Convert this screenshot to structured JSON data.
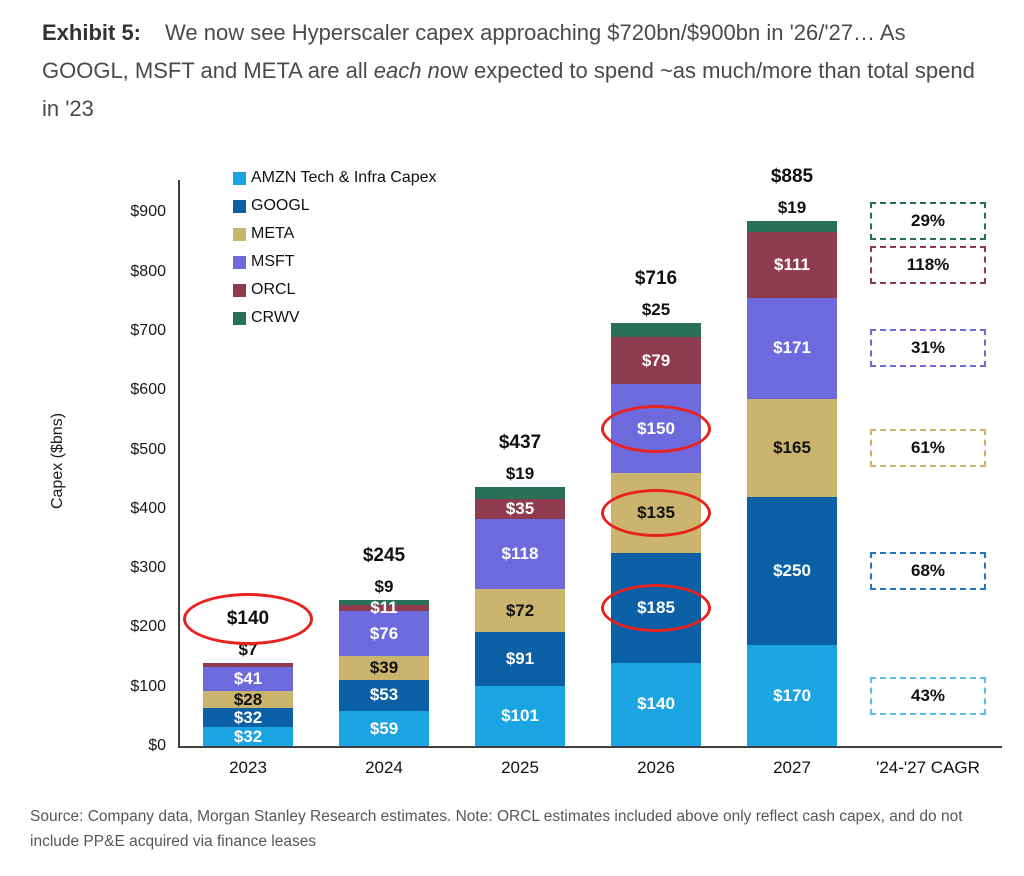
{
  "page": {
    "title": {
      "prefix": "Exhibit 5:",
      "part1": "We now see Hyperscaler capex approaching $720bn/$900bn in '26/'27… As GOOGL, MSFT and META are all ",
      "italic": "each n",
      "part2": "ow expected to spend ~as much/more than total spend in '23"
    },
    "source": "Source: Company data, Morgan Stanley Research estimates. Note: ORCL estimates included above only reflect cash capex, and do not include PP&E acquired via finance leases"
  },
  "chart_data": {
    "type": "stacked-bar",
    "title": "",
    "xlabel": "",
    "ylabel": "Capex ($bns)",
    "ylim": [
      0,
      940
    ],
    "grid": false,
    "legend_position": "top-left",
    "yticks": {
      "values": [
        0,
        100,
        200,
        300,
        400,
        500,
        600,
        700,
        800,
        900
      ],
      "labels": [
        "$0",
        "$100",
        "$200",
        "$300",
        "$400",
        "$500",
        "$600",
        "$700",
        "$800",
        "$900"
      ]
    },
    "categories": [
      "2023",
      "2024",
      "2025",
      "2026",
      "2027"
    ],
    "x_axis_extra_label": "'24-'27 CAGR",
    "series": [
      {
        "key": "AMZN",
        "name": "AMZN Tech & Infra Capex",
        "color": "#1BA4E2",
        "label_color": "#ffffff",
        "values": [
          32,
          59,
          101,
          140,
          170
        ]
      },
      {
        "key": "GOOGL",
        "name": "GOOGL",
        "color": "#0B5FA5",
        "label_color": "#ffffff",
        "values": [
          32,
          53,
          91,
          185,
          250
        ]
      },
      {
        "key": "META",
        "name": "META",
        "color": "#CBB46E",
        "label_color": "#111111",
        "values": [
          28,
          39,
          72,
          135,
          165
        ]
      },
      {
        "key": "MSFT",
        "name": "MSFT",
        "color": "#6C6ADC",
        "label_color": "#ffffff",
        "values": [
          41,
          76,
          118,
          150,
          171
        ]
      },
      {
        "key": "ORCL",
        "name": "ORCL",
        "color": "#8E3A4F",
        "label_color": "#ffffff",
        "values": [
          7,
          11,
          35,
          79,
          111
        ]
      },
      {
        "key": "CRWV",
        "name": "CRWV",
        "color": "#2A6F58",
        "label_color": "#ffffff",
        "values": [
          0,
          9,
          19,
          25,
          19
        ]
      }
    ],
    "totals": {
      "labels": [
        "$140",
        "$245",
        "$437",
        "$716",
        "$885"
      ],
      "circled": [
        true,
        false,
        false,
        false,
        false
      ]
    },
    "above_bar_labels": [
      "$7",
      "$9",
      "$19",
      "$25",
      "$19"
    ],
    "inside_labels_hidden": [
      [
        "2023",
        "ORCL"
      ],
      [
        "2024",
        "CRWV"
      ],
      [
        "2025",
        "CRWV"
      ],
      [
        "2026",
        "CRWV"
      ],
      [
        "2027",
        "CRWV"
      ]
    ],
    "circled_inside_labels": [
      [
        "2026",
        "GOOGL"
      ],
      [
        "2026",
        "META"
      ],
      [
        "2026",
        "MSFT"
      ]
    ],
    "annotation_color": "#E8231F",
    "cagr_boxes": [
      {
        "series": "CRWV",
        "label": "29%",
        "border_color": "#2A6F58"
      },
      {
        "series": "ORCL",
        "label": "118%",
        "border_color": "#8E3A4F"
      },
      {
        "series": "MSFT",
        "label": "31%",
        "border_color": "#6C6ADC"
      },
      {
        "series": "META",
        "label": "61%",
        "border_color": "#CBB46E"
      },
      {
        "series": "GOOGL",
        "label": "68%",
        "border_color": "#2277C4"
      },
      {
        "series": "AMZN",
        "label": "43%",
        "border_color": "#5BBDE9"
      }
    ]
  }
}
